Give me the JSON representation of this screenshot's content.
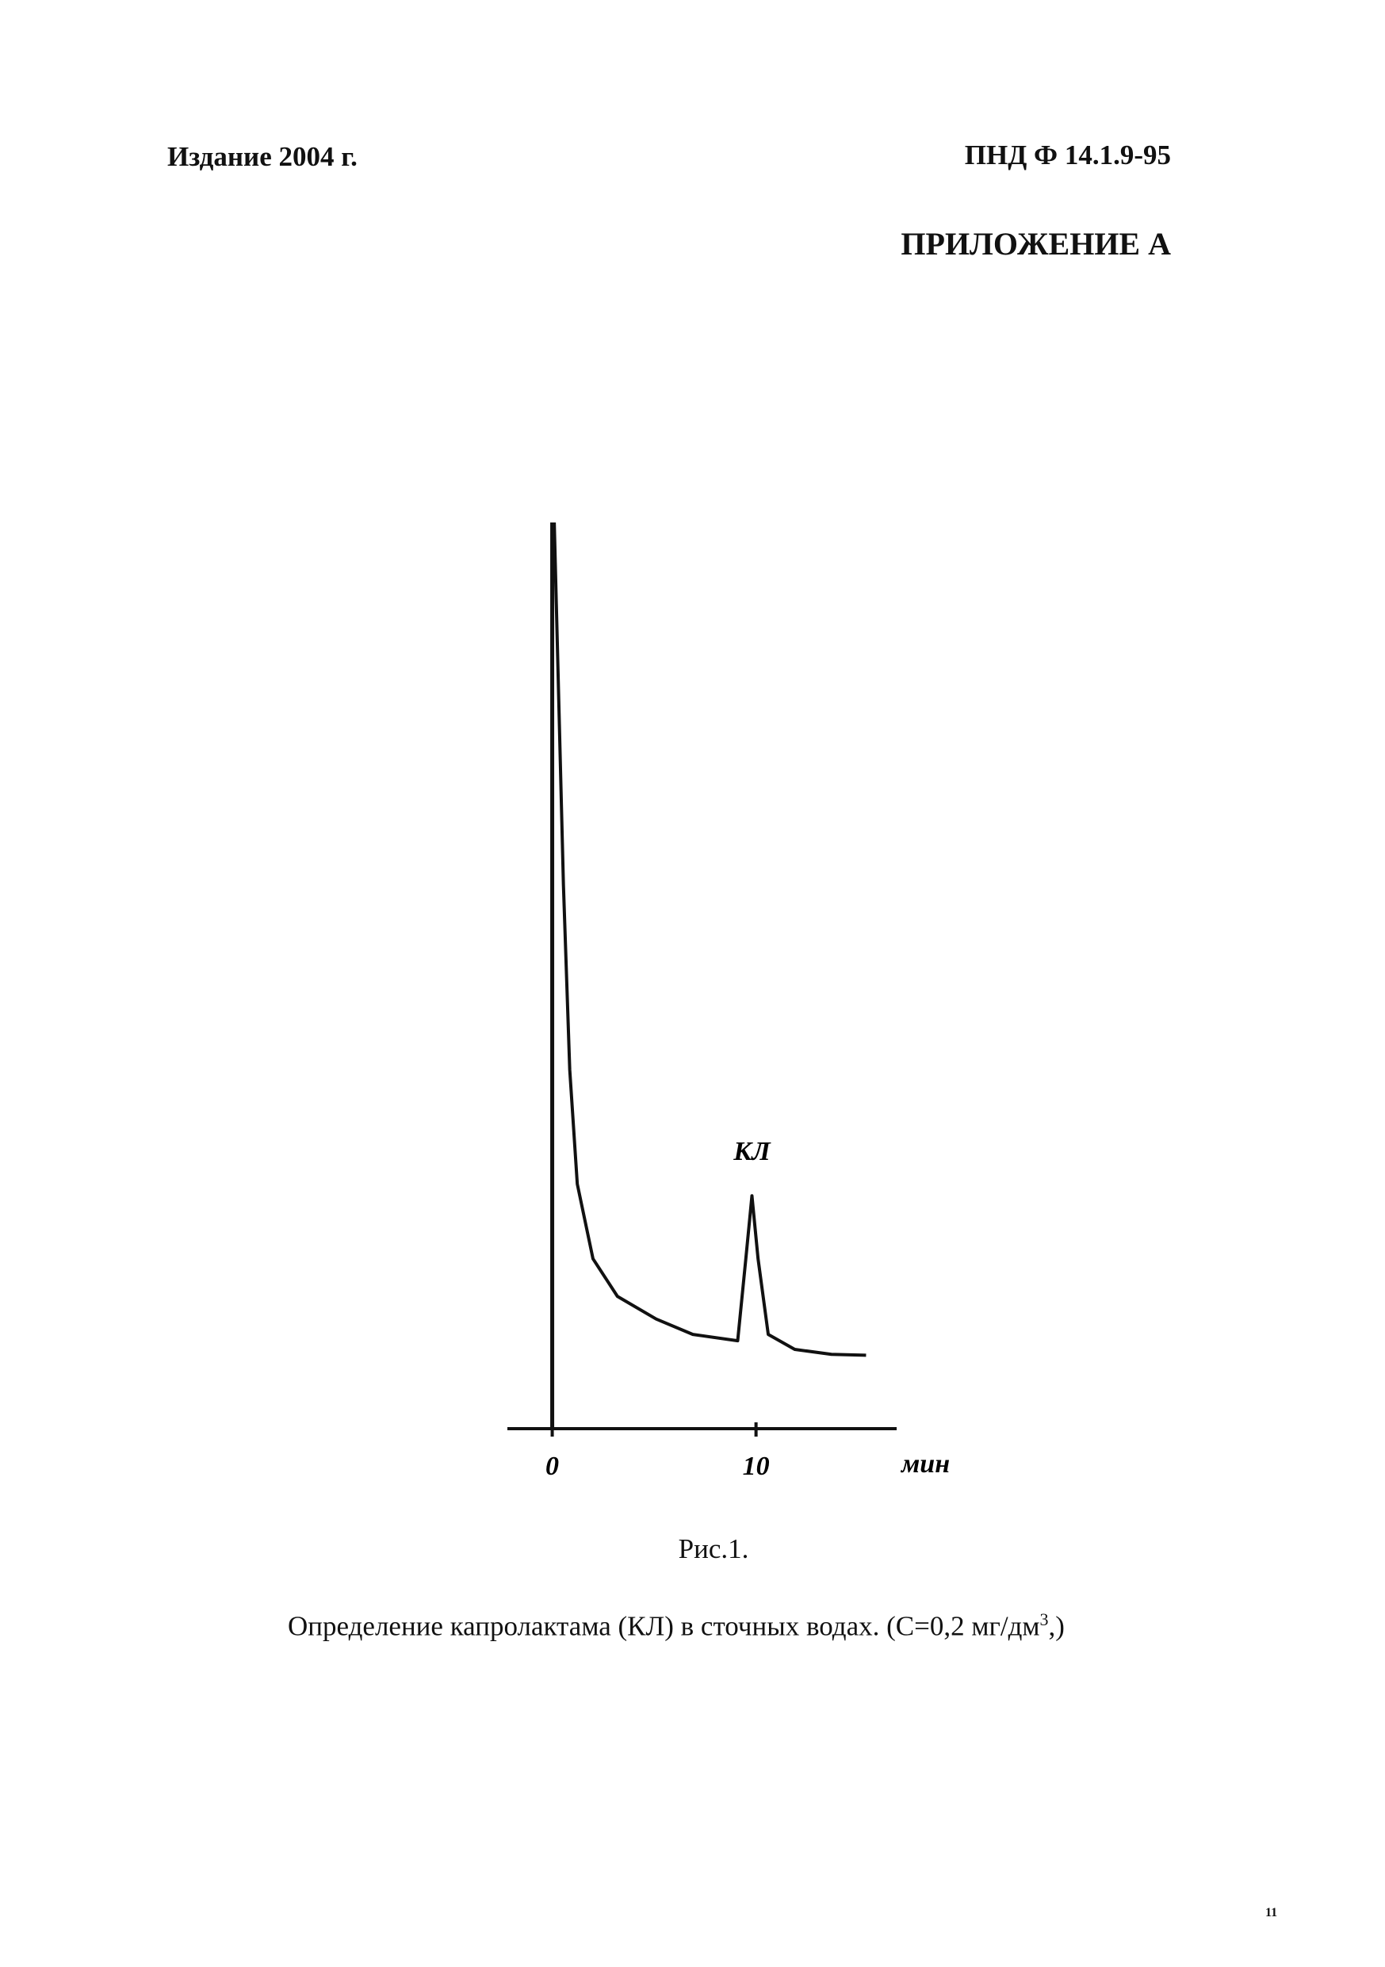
{
  "header": {
    "left": "Издание 2004 г.",
    "right": "ПНД Ф 14.1.9-95"
  },
  "appendix": "ПРИЛОЖЕНИЕ А",
  "chart_data": {
    "type": "line",
    "xlabel": "мин",
    "annotation": "КЛ",
    "xlim": [
      -2.2,
      16.9
    ],
    "xticks": [
      0,
      10
    ],
    "ylim": [
      0,
      100
    ],
    "color": "#111111",
    "x": [
      0.1,
      0.55,
      0.86,
      1.23,
      2.0,
      3.2,
      5.1,
      6.9,
      9.1,
      9.5,
      9.8,
      10.1,
      10.6,
      11.9,
      13.7,
      15.4
    ],
    "values": [
      100,
      60,
      39.6,
      27,
      18.75,
      14.6,
      12.1,
      10.4,
      9.7,
      18.75,
      25.7,
      18.75,
      10.4,
      8.75,
      8.2,
      8.1
    ]
  },
  "figure": {
    "caption": "Рис.1.",
    "description": [
      "Определение капролактама (КЛ) в сточных водах. (С=0,2 мг/дм",
      "3",
      ",)"
    ]
  },
  "page_number": "11"
}
